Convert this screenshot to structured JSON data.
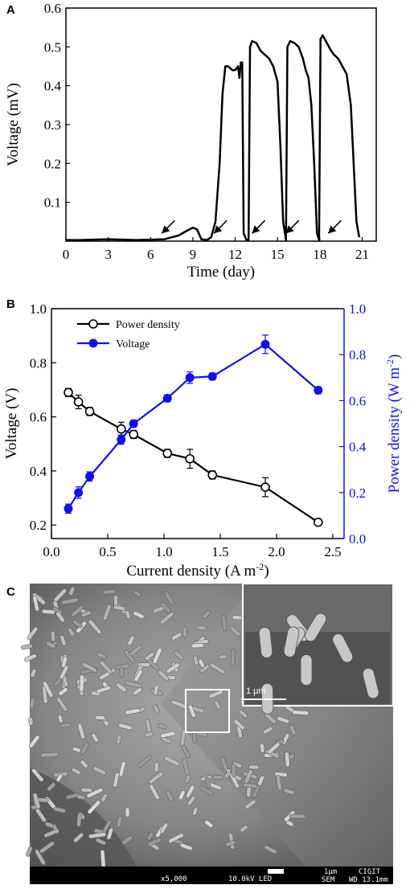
{
  "panels": {
    "a": "A",
    "b": "B",
    "c": "C"
  },
  "chart_data": [
    {
      "type": "line",
      "panel": "A",
      "xlabel": "Time (day)",
      "ylabel": "Voltage (mV)",
      "xlim": [
        0,
        22
      ],
      "ylim": [
        0,
        0.6
      ],
      "xticks": [
        "0",
        "3",
        "6",
        "9",
        "12",
        "15",
        "18",
        "21"
      ],
      "yticks": [
        "0.1",
        "0.2",
        "0.3",
        "0.4",
        "0.5",
        "0.6"
      ],
      "color": "#000000",
      "series": [
        {
          "x": [
            0,
            1,
            2,
            3,
            4,
            5,
            6,
            7,
            8,
            8.5,
            9,
            9.3,
            9.6,
            10,
            10.3,
            10.6,
            10.9,
            11.1,
            11.3,
            11.5,
            11.8,
            12.0,
            12.2,
            12.3,
            12.4,
            12.5,
            12.6,
            12.8,
            12.95,
            13.05,
            13.2,
            13.5,
            13.8,
            14.1,
            14.4,
            14.7,
            15.0,
            15.2,
            15.4,
            15.6,
            15.7,
            15.9,
            16.2,
            16.5,
            16.8,
            17.0,
            17.2,
            17.4,
            17.6,
            17.8,
            17.95,
            18.05,
            18.2,
            18.5,
            18.8,
            19.0,
            19.3,
            19.6,
            19.9,
            20.2,
            20.4,
            20.6,
            20.8
          ],
          "y": [
            0.003,
            0.003,
            0.004,
            0.005,
            0.004,
            0.003,
            0.004,
            0.005,
            0.015,
            0.025,
            0.035,
            0.03,
            0.005,
            0.003,
            0.01,
            0.05,
            0.2,
            0.38,
            0.45,
            0.45,
            0.44,
            0.44,
            0.45,
            0.42,
            0.46,
            0.46,
            0.02,
            0.003,
            0.003,
            0.5,
            0.515,
            0.51,
            0.49,
            0.48,
            0.47,
            0.45,
            0.41,
            0.25,
            0.05,
            0.003,
            0.5,
            0.515,
            0.51,
            0.5,
            0.47,
            0.44,
            0.42,
            0.35,
            0.2,
            0.02,
            0.003,
            0.52,
            0.53,
            0.51,
            0.49,
            0.48,
            0.47,
            0.45,
            0.43,
            0.35,
            0.2,
            0.05,
            0.01
          ]
        }
      ],
      "annotations": {
        "arrows_at_day": [
          6.8,
          10.5,
          13.2,
          15.6,
          18.6
        ]
      }
    },
    {
      "type": "line",
      "panel": "B",
      "xlabel": "Current density (A m-2)",
      "ylabel": "Voltage (V)",
      "ylabel_right": "Power density (W m-2)",
      "xlim": [
        0.0,
        2.6
      ],
      "ylim": [
        0.15,
        1.0
      ],
      "ylim_right": [
        0.0,
        1.0
      ],
      "xticks": [
        "0.0",
        "0.5",
        "1.0",
        "1.5",
        "2.0",
        "2.5"
      ],
      "yticks": [
        "0.2",
        "0.4",
        "0.6",
        "0.8",
        "1.0"
      ],
      "yticks_right": [
        "0.0",
        "0.2",
        "0.4",
        "0.6",
        "0.8",
        "1.0"
      ],
      "legend_position": "top-left",
      "series": [
        {
          "name": "Power density",
          "axis": "left",
          "color": "#000000",
          "marker": "open-circle",
          "x": [
            0.15,
            0.24,
            0.34,
            0.62,
            0.73,
            1.03,
            1.23,
            1.43,
            1.9,
            2.37
          ],
          "y": [
            0.69,
            0.655,
            0.62,
            0.555,
            0.535,
            0.465,
            0.445,
            0.385,
            0.34,
            0.21
          ],
          "err": [
            0.015,
            0.025,
            0.015,
            0.025,
            0.015,
            0.015,
            0.035,
            0.015,
            0.035,
            0.01
          ]
        },
        {
          "name": "Voltage",
          "axis": "right",
          "color": "#1010ee",
          "marker": "filled-circle",
          "x": [
            0.15,
            0.24,
            0.34,
            0.62,
            0.73,
            1.03,
            1.23,
            1.43,
            1.9,
            2.37
          ],
          "y": [
            0.13,
            0.2,
            0.27,
            0.43,
            0.5,
            0.61,
            0.7,
            0.705,
            0.845,
            0.645
          ],
          "err": [
            0.02,
            0.025,
            0.02,
            0.02,
            0.015,
            0.015,
            0.025,
            0.015,
            0.04,
            0.015
          ]
        }
      ]
    }
  ],
  "sem": {
    "inset_scale": "1 μm",
    "footer": {
      "mag": "x5,000",
      "kv": "10.0kV LED",
      "scale": "1μm",
      "mode": "SEM",
      "org": "CIGIT",
      "wd": "WD 13.1mm"
    }
  }
}
